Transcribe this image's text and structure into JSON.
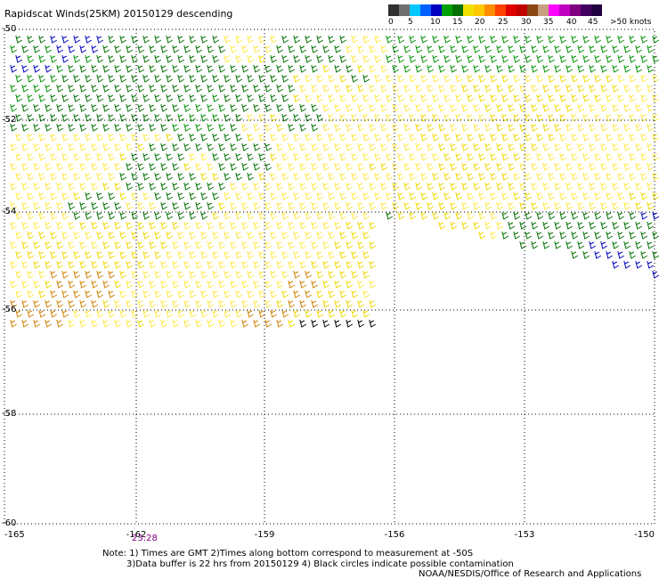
{
  "title": "Rapidscat Winds(25KM) 20150129 descending",
  "legend": {
    "colors": [
      "#303030",
      "#707070",
      "#00c8ff",
      "#0060ff",
      "#0000c0",
      "#00a000",
      "#007000",
      "#f0e000",
      "#ffc800",
      "#ff8c00",
      "#ff4000",
      "#e00000",
      "#c00000",
      "#8b4513",
      "#c8a080",
      "#ff00ff",
      "#c000c0",
      "#800080",
      "#400060",
      "#200040"
    ],
    "labels": [
      "0",
      "5",
      "10",
      "15",
      "20",
      "25",
      "30",
      "35",
      "40",
      "45",
      ">50 knots"
    ]
  },
  "axes": {
    "lat_labels": [
      "-50",
      "-52",
      "-54",
      "-56",
      "-58",
      "-60"
    ],
    "lon_labels": [
      "-165",
      "-162",
      "-159",
      "-156",
      "-153",
      "-150"
    ]
  },
  "time_label": "23:28",
  "notes": {
    "line1": "Note: 1) Times are GMT 2)Times along bottom correspond to measurement at -50S",
    "line2": "3)Data buffer is 22 hrs from 20150129 4) Black circles indicate possible contamination",
    "line3": "NOAA/NESDIS/Office of Research and Applications"
  }
}
